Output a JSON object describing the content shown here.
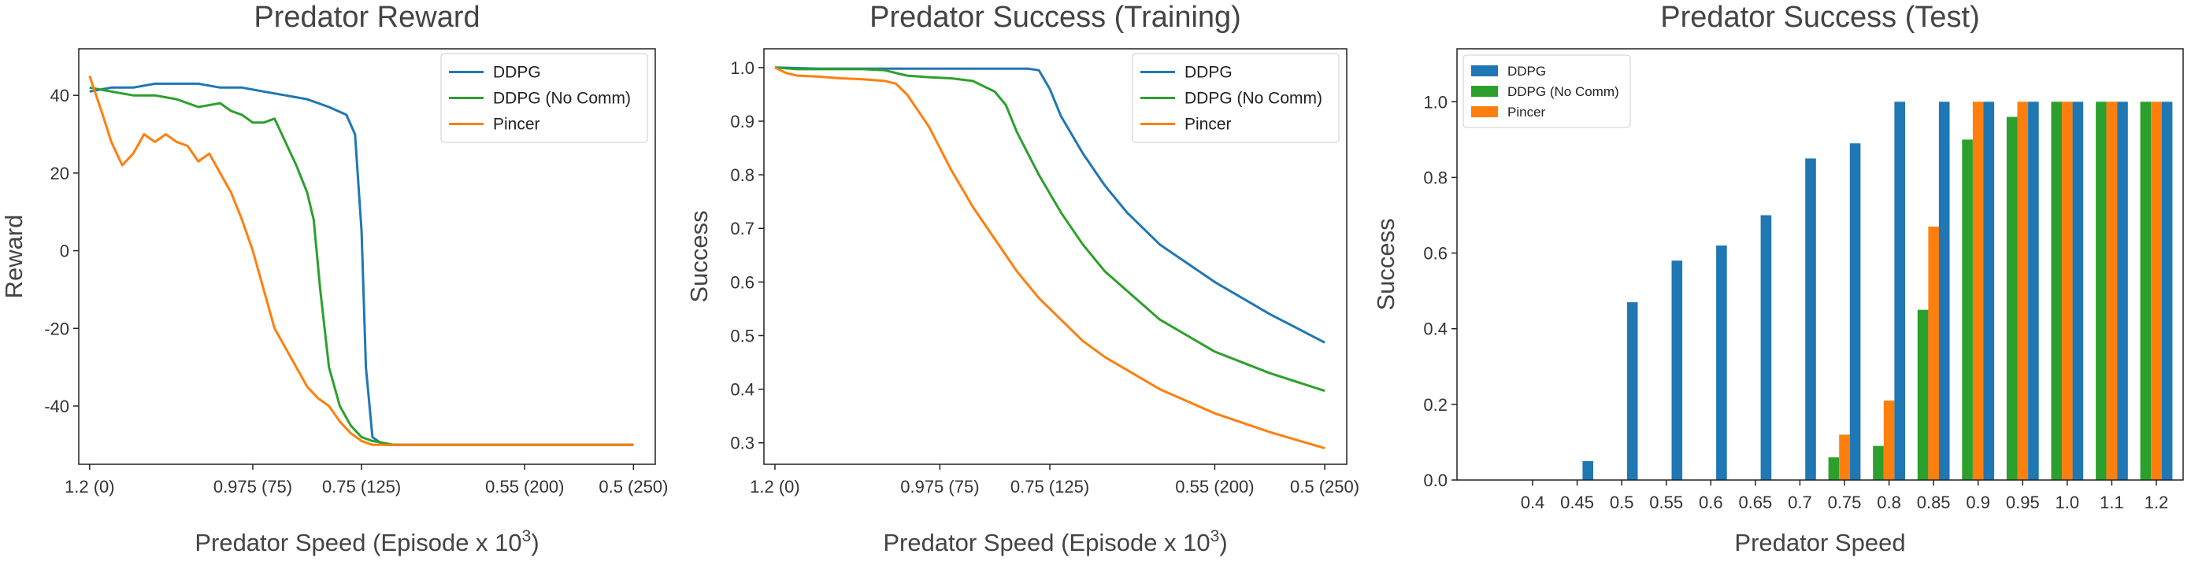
{
  "colors": {
    "ddpg": "#1f77b4",
    "ddpg_nocomm": "#2ca02c",
    "pincer": "#ff7f0e"
  },
  "chart_data": [
    {
      "type": "line",
      "title": "Predator Reward",
      "xlabel": "Predator Speed (Episode x 10",
      "xlabel_sup": "3",
      "xlabel_close": ")",
      "ylabel": "Reward",
      "xlim": [
        -5,
        260
      ],
      "ylim": [
        -55,
        52
      ],
      "xtick_values": [
        0,
        75,
        125,
        200,
        250
      ],
      "xtick_labels": [
        "1.2 (0)",
        "0.975 (75)",
        "0.75 (125)",
        "0.55 (200)",
        "0.5 (250)"
      ],
      "yticks": [
        40,
        20,
        0,
        -20,
        -40
      ],
      "ytick_labels": [
        "40",
        "20",
        "0",
        "-20",
        "-40"
      ],
      "legend_loc": "top-right",
      "series": [
        {
          "name": "DDPG",
          "color": "#1f77b4",
          "x": [
            0,
            10,
            20,
            30,
            40,
            50,
            60,
            70,
            80,
            90,
            100,
            110,
            118,
            122,
            125,
            127,
            130,
            135,
            140,
            150,
            175,
            200,
            225,
            250
          ],
          "y": [
            41,
            42,
            42,
            43,
            43,
            43,
            42,
            42,
            41,
            40,
            39,
            37,
            35,
            30,
            5,
            -30,
            -48,
            -50,
            -50,
            -50,
            -50,
            -50,
            -50,
            -50
          ]
        },
        {
          "name": "DDPG (No Comm)",
          "color": "#2ca02c",
          "x": [
            0,
            10,
            20,
            30,
            40,
            50,
            60,
            65,
            70,
            75,
            80,
            85,
            90,
            95,
            100,
            103,
            106,
            110,
            115,
            120,
            125,
            130,
            140,
            150,
            200,
            250
          ],
          "y": [
            42,
            41,
            40,
            40,
            39,
            37,
            38,
            36,
            35,
            33,
            33,
            34,
            28,
            22,
            15,
            8,
            -10,
            -30,
            -40,
            -45,
            -48,
            -49,
            -50,
            -50,
            -50,
            -50
          ]
        },
        {
          "name": "Pincer",
          "color": "#ff7f0e",
          "x": [
            0,
            3,
            6,
            10,
            15,
            20,
            25,
            30,
            35,
            40,
            45,
            50,
            55,
            60,
            65,
            70,
            75,
            80,
            85,
            90,
            95,
            100,
            105,
            110,
            115,
            120,
            125,
            130,
            140,
            150,
            200,
            250
          ],
          "y": [
            45,
            40,
            35,
            28,
            22,
            25,
            30,
            28,
            30,
            28,
            27,
            23,
            25,
            20,
            15,
            8,
            0,
            -10,
            -20,
            -25,
            -30,
            -35,
            -38,
            -40,
            -44,
            -47,
            -49,
            -50,
            -50,
            -50,
            -50,
            -50
          ]
        }
      ]
    },
    {
      "type": "line",
      "title": "Predator Success (Training)",
      "xlabel": "Predator Speed (Episode x 10",
      "xlabel_sup": "3",
      "xlabel_close": ")",
      "ylabel": "Success",
      "xlim": [
        -5,
        260
      ],
      "ylim": [
        0.26,
        1.035
      ],
      "xtick_values": [
        0,
        75,
        125,
        200,
        250
      ],
      "xtick_labels": [
        "1.2 (0)",
        "0.975 (75)",
        "0.75 (125)",
        "0.55 (200)",
        "0.5 (250)"
      ],
      "yticks": [
        1.0,
        0.9,
        0.8,
        0.7,
        0.6,
        0.5,
        0.4,
        0.3
      ],
      "ytick_labels": [
        "1.0",
        "0.9",
        "0.8",
        "0.7",
        "0.6",
        "0.5",
        "0.4",
        "0.3"
      ],
      "legend_loc": "top-right",
      "series": [
        {
          "name": "DDPG",
          "color": "#1f77b4",
          "x": [
            0,
            20,
            50,
            80,
            100,
            115,
            120,
            125,
            130,
            140,
            150,
            160,
            175,
            200,
            225,
            250
          ],
          "y": [
            1.0,
            0.998,
            0.998,
            0.998,
            0.998,
            0.998,
            0.995,
            0.96,
            0.91,
            0.84,
            0.78,
            0.73,
            0.67,
            0.6,
            0.54,
            0.487
          ]
        },
        {
          "name": "DDPG (No Comm)",
          "color": "#2ca02c",
          "x": [
            0,
            10,
            20,
            40,
            50,
            60,
            70,
            80,
            90,
            95,
            100,
            105,
            110,
            115,
            120,
            130,
            140,
            150,
            175,
            200,
            225,
            250
          ],
          "y": [
            1.0,
            0.997,
            0.997,
            0.997,
            0.995,
            0.985,
            0.982,
            0.98,
            0.975,
            0.965,
            0.955,
            0.93,
            0.88,
            0.84,
            0.8,
            0.73,
            0.67,
            0.62,
            0.53,
            0.47,
            0.43,
            0.397
          ]
        },
        {
          "name": "Pincer",
          "color": "#ff7f0e",
          "x": [
            0,
            5,
            10,
            20,
            30,
            40,
            50,
            55,
            60,
            65,
            70,
            75,
            80,
            90,
            100,
            110,
            120,
            130,
            140,
            150,
            175,
            200,
            225,
            250
          ],
          "y": [
            1.0,
            0.99,
            0.985,
            0.983,
            0.98,
            0.978,
            0.975,
            0.97,
            0.95,
            0.92,
            0.89,
            0.85,
            0.81,
            0.74,
            0.68,
            0.62,
            0.57,
            0.53,
            0.49,
            0.46,
            0.4,
            0.355,
            0.32,
            0.29
          ]
        }
      ]
    },
    {
      "type": "bar",
      "title": "Predator Success (Test)",
      "xlabel": "Predator Speed",
      "ylabel": "Success",
      "ylim": [
        0,
        1.14
      ],
      "yticks": [
        0.0,
        0.2,
        0.4,
        0.6,
        0.8,
        1.0
      ],
      "ytick_labels": [
        "0.0",
        "0.2",
        "0.4",
        "0.6",
        "0.8",
        "1.0"
      ],
      "categories": [
        "0.4",
        "0.45",
        "0.5",
        "0.55",
        "0.6",
        "0.65",
        "0.7",
        "0.75",
        "0.8",
        "0.85",
        "0.9",
        "0.95",
        "1.0",
        "1.1",
        "1.2"
      ],
      "legend_loc": "top-left",
      "series": [
        {
          "name": "DDPG",
          "color": "#1f77b4",
          "values": [
            0.0,
            0.05,
            0.47,
            0.58,
            0.62,
            0.7,
            0.85,
            0.89,
            1.0,
            1.0,
            1.0,
            1.0,
            1.0,
            1.0,
            1.0
          ]
        },
        {
          "name": "DDPG (No Comm)",
          "color": "#2ca02c",
          "values": [
            0.0,
            0.0,
            0.0,
            0.0,
            0.0,
            0.0,
            0.0,
            0.06,
            0.09,
            0.45,
            0.9,
            0.96,
            1.0,
            1.0,
            1.0
          ]
        },
        {
          "name": "Pincer",
          "color": "#ff7f0e",
          "values": [
            0.0,
            0.0,
            0.0,
            0.0,
            0.0,
            0.0,
            0.0,
            0.12,
            0.21,
            0.67,
            1.0,
            1.0,
            1.0,
            1.0,
            1.0
          ]
        }
      ]
    }
  ]
}
